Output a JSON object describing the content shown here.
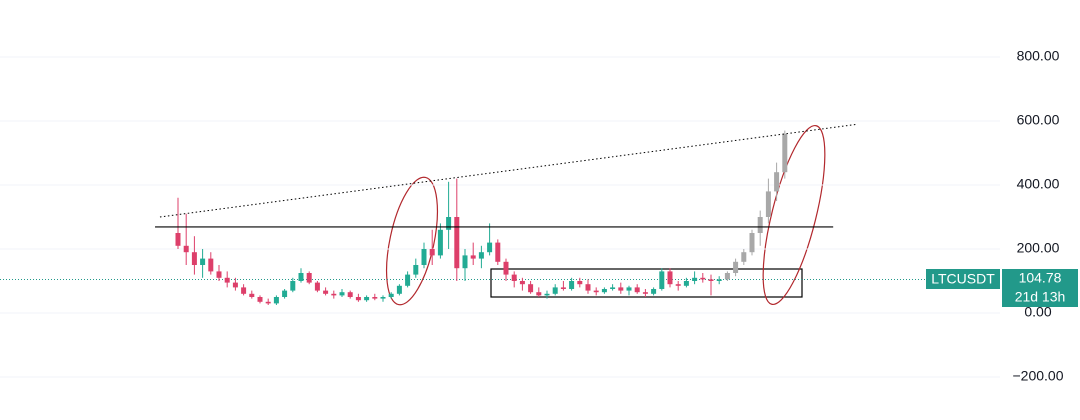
{
  "chart_data": {
    "type": "candlestick",
    "symbol": "LTCUSDT",
    "last_price": 104.78,
    "countdown": "21d 13h",
    "ylim": [
      -334.375,
      978.125
    ],
    "yticks": [
      {
        "value": 800,
        "label": "800.00"
      },
      {
        "value": 600,
        "label": "600.00"
      },
      {
        "value": 400,
        "label": "400.00"
      },
      {
        "value": 200,
        "label": "200.00"
      },
      {
        "value": 0,
        "label": "0.00"
      },
      {
        "value": -200,
        "label": "−200.00"
      }
    ],
    "grid": true,
    "up_color": "#22ab94",
    "down_color": "#dd3f6a",
    "projection_color": "#a8a8a8",
    "price_line_color": "#22998a",
    "candles": {
      "open": [
        250,
        210,
        190,
        150,
        170,
        130,
        110,
        95,
        80,
        60,
        50,
        35,
        30,
        50,
        70,
        100,
        125,
        95,
        70,
        60,
        55,
        65,
        50,
        40,
        50,
        45,
        50,
        60,
        85,
        120,
        150,
        200,
        180,
        260,
        300,
        140,
        180,
        170,
        190,
        220,
        160,
        120,
        100,
        90,
        65,
        55,
        60,
        80,
        75,
        100,
        90,
        70,
        65,
        75,
        80,
        70,
        80,
        65,
        60,
        75,
        130,
        90,
        85,
        100,
        110,
        105,
        100
      ],
      "high": [
        360,
        310,
        240,
        200,
        190,
        150,
        130,
        110,
        90,
        70,
        55,
        45,
        55,
        75,
        110,
        140,
        130,
        100,
        80,
        70,
        75,
        70,
        60,
        55,
        60,
        55,
        65,
        90,
        130,
        170,
        220,
        260,
        280,
        410,
        420,
        200,
        220,
        210,
        280,
        230,
        170,
        130,
        110,
        100,
        80,
        70,
        90,
        100,
        110,
        110,
        105,
        80,
        80,
        90,
        95,
        85,
        90,
        75,
        80,
        140,
        140,
        100,
        110,
        130,
        125,
        120,
        115
      ],
      "low": [
        200,
        150,
        120,
        110,
        120,
        100,
        80,
        70,
        55,
        45,
        30,
        25,
        25,
        45,
        65,
        95,
        90,
        65,
        55,
        45,
        50,
        45,
        35,
        35,
        40,
        35,
        45,
        55,
        80,
        110,
        140,
        150,
        170,
        200,
        100,
        100,
        150,
        140,
        180,
        150,
        100,
        80,
        70,
        60,
        50,
        45,
        55,
        70,
        70,
        80,
        60,
        55,
        60,
        70,
        60,
        55,
        60,
        50,
        55,
        70,
        80,
        70,
        80,
        90,
        95,
        55,
        90
      ],
      "close": [
        210,
        190,
        150,
        170,
        130,
        110,
        95,
        80,
        60,
        50,
        35,
        30,
        50,
        70,
        100,
        125,
        95,
        70,
        60,
        55,
        65,
        50,
        40,
        50,
        45,
        50,
        60,
        85,
        120,
        150,
        200,
        180,
        260,
        300,
        140,
        180,
        170,
        190,
        220,
        160,
        120,
        100,
        90,
        65,
        55,
        60,
        80,
        75,
        100,
        90,
        70,
        65,
        75,
        80,
        70,
        80,
        65,
        60,
        75,
        130,
        90,
        85,
        100,
        110,
        105,
        100,
        104.78
      ]
    },
    "projection": {
      "open": [
        105,
        125,
        160,
        190,
        250,
        300,
        380,
        440
      ],
      "high": [
        130,
        170,
        200,
        260,
        320,
        420,
        470,
        570
      ],
      "low": [
        100,
        115,
        150,
        180,
        210,
        280,
        350,
        420
      ],
      "close": [
        125,
        160,
        190,
        250,
        300,
        380,
        440,
        560
      ]
    },
    "hline": {
      "x": [
        -2.8,
        79.9
      ],
      "value": 269
    },
    "trendline": {
      "x": [
        -2.2,
        82.9
      ],
      "values": [
        300,
        590
      ]
    }
  }
}
